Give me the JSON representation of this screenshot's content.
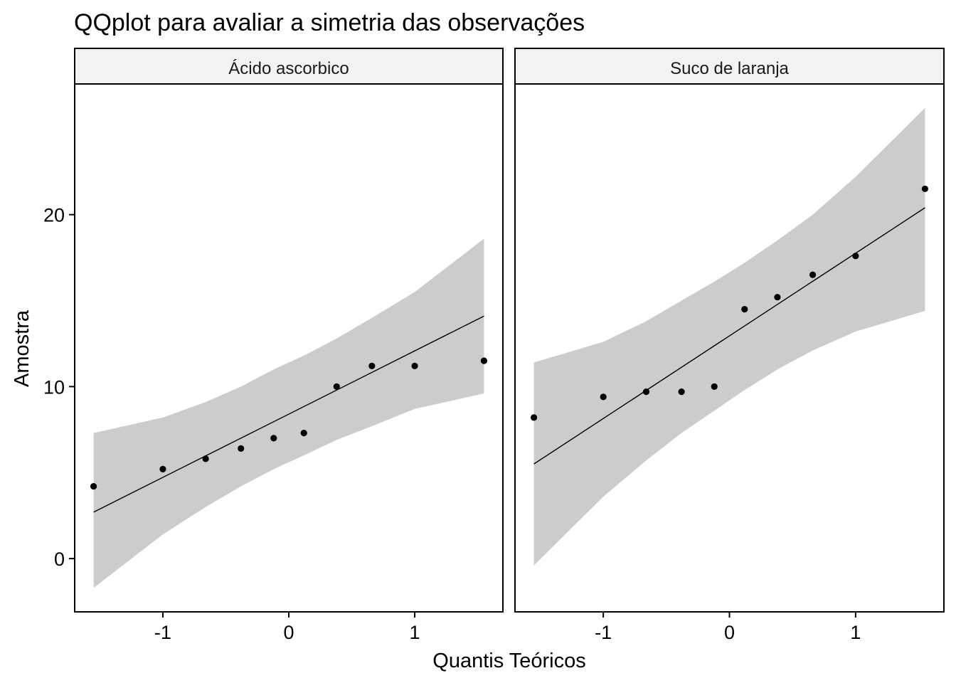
{
  "chart_data": {
    "type": "scatter",
    "title": "QQplot para avaliar a simetria das observações",
    "xlabel": "Quantis Teóricos",
    "ylabel": "Amostra",
    "xlim": [
      -1.7,
      1.7
    ],
    "ylim": [
      -3.1,
      27.6
    ],
    "x_ticks": [
      -1,
      0,
      1
    ],
    "x_tick_labels": [
      "-1",
      "0",
      "1"
    ],
    "y_ticks": [
      0,
      10,
      20
    ],
    "y_tick_labels": [
      "0",
      "10",
      "20"
    ],
    "grid": false,
    "band_color": "#cccccc",
    "point_color": "#000000",
    "line_color": "#000000",
    "strip_color": "#f2f2f2",
    "panels": [
      {
        "strip_label": "Ácido ascorbico",
        "points": {
          "x": [
            -1.55,
            -1.0,
            -0.66,
            -0.38,
            -0.12,
            0.12,
            0.38,
            0.66,
            1.0,
            1.55
          ],
          "y": [
            4.2,
            5.2,
            5.8,
            6.4,
            7.0,
            7.3,
            10.0,
            11.2,
            11.2,
            11.5
          ]
        },
        "line": {
          "x": [
            -1.55,
            1.55
          ],
          "y": [
            2.7,
            14.1
          ]
        },
        "band": {
          "x": [
            -1.55,
            -1.0,
            -0.66,
            -0.38,
            -0.12,
            0.12,
            0.38,
            0.66,
            1.0,
            1.55
          ],
          "lower": [
            -1.7,
            1.4,
            3.0,
            4.2,
            5.2,
            6.0,
            6.9,
            7.7,
            8.7,
            9.6
          ],
          "upper": [
            7.3,
            8.2,
            9.1,
            10.0,
            11.0,
            11.8,
            12.8,
            14.0,
            15.5,
            18.6
          ]
        }
      },
      {
        "strip_label": "Suco de laranja",
        "points": {
          "x": [
            -1.55,
            -1.0,
            -0.66,
            -0.38,
            -0.12,
            0.12,
            0.38,
            0.66,
            1.0,
            1.55
          ],
          "y": [
            8.2,
            9.4,
            9.7,
            9.7,
            10.0,
            14.5,
            15.2,
            16.5,
            17.6,
            21.5
          ]
        },
        "line": {
          "x": [
            -1.55,
            1.55
          ],
          "y": [
            5.5,
            20.4
          ]
        },
        "band": {
          "x": [
            -1.55,
            -1.0,
            -0.66,
            -0.38,
            -0.12,
            0.12,
            0.38,
            0.66,
            1.0,
            1.55
          ],
          "lower": [
            -0.4,
            3.6,
            5.7,
            7.3,
            8.6,
            9.8,
            11.0,
            12.1,
            13.2,
            14.4
          ],
          "upper": [
            11.4,
            12.6,
            13.8,
            15.0,
            16.1,
            17.2,
            18.5,
            20.0,
            22.2,
            26.2
          ]
        }
      }
    ]
  }
}
